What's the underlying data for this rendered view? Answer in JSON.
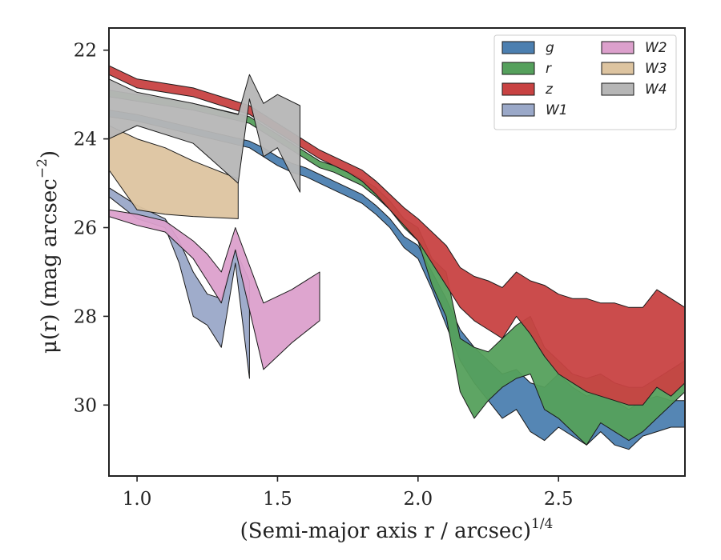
{
  "chart_data": {
    "type": "area",
    "xlabel": "(Semi-major axis r / arcsec)",
    "xlabel_exponent": "1/4",
    "ylabel": "μ(r) (mag arcsec",
    "ylabel_exponent": "−2",
    "ylabel_close": ")",
    "xlim": [
      0.9,
      2.95
    ],
    "ylim": [
      31.6,
      21.5
    ],
    "y_inverted": true,
    "xticks": [
      1.0,
      1.5,
      2.0,
      2.5
    ],
    "xtick_labels": [
      "1.0",
      "1.5",
      "2.0",
      "2.5"
    ],
    "yticks": [
      22,
      24,
      26,
      28,
      30
    ],
    "ytick_labels": [
      "22",
      "24",
      "26",
      "28",
      "30"
    ],
    "grid": false,
    "legend": {
      "placement": "top-right",
      "columns": 2
    },
    "series": [
      {
        "name": "g",
        "color": "#4c7fb0",
        "x": [
          0.9,
          1.0,
          1.1,
          1.2,
          1.3,
          1.4,
          1.45,
          1.5,
          1.55,
          1.6,
          1.65,
          1.7,
          1.75,
          1.8,
          1.85,
          1.9,
          1.95,
          2.0,
          2.05,
          2.1,
          2.15,
          2.2,
          2.25,
          2.3,
          2.35,
          2.4,
          2.45,
          2.5,
          2.55,
          2.6,
          2.65,
          2.7,
          2.75,
          2.8,
          2.85,
          2.9,
          2.95
        ],
        "lo": [
          23.35,
          23.45,
          23.6,
          23.75,
          23.9,
          24.05,
          24.2,
          24.4,
          24.55,
          24.65,
          24.8,
          24.95,
          25.1,
          25.25,
          25.5,
          25.8,
          26.2,
          26.4,
          27.0,
          27.6,
          28.3,
          28.7,
          29.0,
          29.3,
          29.2,
          29.5,
          29.6,
          29.3,
          29.6,
          29.8,
          29.7,
          29.9,
          30.1,
          29.9,
          29.8,
          29.9,
          29.9
        ],
        "hi": [
          23.5,
          23.6,
          23.75,
          23.9,
          24.05,
          24.2,
          24.4,
          24.6,
          24.75,
          24.85,
          25.0,
          25.15,
          25.3,
          25.45,
          25.7,
          26.0,
          26.45,
          26.7,
          27.4,
          28.2,
          29.0,
          29.5,
          29.9,
          30.3,
          30.1,
          30.6,
          30.8,
          30.5,
          30.7,
          30.9,
          30.6,
          30.9,
          31.0,
          30.7,
          30.6,
          30.5,
          30.5
        ]
      },
      {
        "name": "r",
        "color": "#55a05c",
        "x": [
          0.9,
          1.0,
          1.1,
          1.2,
          1.3,
          1.4,
          1.45,
          1.5,
          1.55,
          1.6,
          1.65,
          1.7,
          1.75,
          1.8,
          1.85,
          1.9,
          1.95,
          2.0,
          2.05,
          2.1,
          2.15,
          2.2,
          2.25,
          2.3,
          2.35,
          2.4,
          2.45,
          2.5,
          2.55,
          2.6,
          2.65,
          2.7,
          2.75,
          2.8,
          2.85,
          2.9,
          2.95
        ],
        "lo": [
          22.9,
          23.0,
          23.1,
          23.2,
          23.35,
          23.5,
          23.7,
          23.9,
          24.1,
          24.3,
          24.5,
          24.6,
          24.75,
          24.9,
          25.1,
          25.4,
          25.8,
          26.0,
          26.7,
          27.0,
          28.5,
          28.7,
          28.8,
          28.5,
          28.2,
          28.0,
          28.7,
          29.0,
          29.3,
          29.4,
          29.3,
          29.5,
          29.6,
          29.6,
          29.4,
          29.2,
          29.0
        ],
        "hi": [
          23.05,
          23.15,
          23.25,
          23.35,
          23.5,
          23.65,
          23.85,
          24.05,
          24.25,
          24.45,
          24.65,
          24.75,
          24.9,
          25.05,
          25.3,
          25.6,
          26.0,
          26.3,
          27.3,
          28.0,
          29.7,
          30.3,
          29.9,
          29.6,
          29.4,
          29.3,
          30.1,
          30.3,
          30.6,
          30.9,
          30.4,
          30.6,
          30.8,
          30.6,
          30.3,
          30.0,
          29.7
        ]
      },
      {
        "name": "z",
        "color": "#c84242",
        "x": [
          0.9,
          1.0,
          1.1,
          1.2,
          1.3,
          1.4,
          1.45,
          1.5,
          1.55,
          1.6,
          1.65,
          1.7,
          1.75,
          1.8,
          1.85,
          1.9,
          1.95,
          2.0,
          2.05,
          2.1,
          2.15,
          2.2,
          2.25,
          2.3,
          2.35,
          2.4,
          2.45,
          2.5,
          2.55,
          2.6,
          2.65,
          2.7,
          2.75,
          2.8,
          2.85,
          2.9,
          2.95
        ],
        "lo": [
          22.35,
          22.65,
          22.75,
          22.85,
          23.05,
          23.25,
          23.45,
          23.65,
          23.85,
          24.05,
          24.25,
          24.4,
          24.55,
          24.7,
          24.95,
          25.25,
          25.55,
          25.8,
          26.1,
          26.4,
          26.9,
          27.1,
          27.2,
          27.35,
          27.0,
          27.2,
          27.3,
          27.5,
          27.6,
          27.6,
          27.7,
          27.7,
          27.8,
          27.8,
          27.4,
          27.6,
          27.8
        ],
        "hi": [
          22.55,
          22.85,
          22.95,
          23.05,
          23.25,
          23.45,
          23.65,
          23.85,
          24.05,
          24.25,
          24.45,
          24.6,
          24.75,
          24.95,
          25.25,
          25.6,
          25.95,
          26.3,
          26.8,
          27.3,
          27.8,
          28.1,
          28.3,
          28.5,
          28.0,
          28.4,
          28.9,
          29.3,
          29.5,
          29.7,
          29.8,
          29.9,
          30.0,
          30.0,
          29.6,
          29.8,
          29.5
        ]
      },
      {
        "name": "W1",
        "color": "#9aa8c8",
        "x": [
          0.9,
          1.0,
          1.1,
          1.15,
          1.2,
          1.25,
          1.3,
          1.35,
          1.4
        ],
        "lo": [
          25.1,
          25.5,
          25.8,
          26.3,
          27.0,
          27.5,
          27.6,
          26.5,
          27.2
        ],
        "hi": [
          25.3,
          25.8,
          26.0,
          26.8,
          28.0,
          28.2,
          28.7,
          26.8,
          29.4
        ]
      },
      {
        "name": "W2",
        "color": "#dca0cc",
        "x": [
          0.9,
          1.0,
          1.1,
          1.2,
          1.25,
          1.3,
          1.35,
          1.45,
          1.55,
          1.65
        ],
        "lo": [
          25.6,
          25.7,
          25.85,
          26.3,
          26.6,
          27.0,
          26.0,
          27.7,
          27.4,
          27.0
        ],
        "hi": [
          25.75,
          25.95,
          26.1,
          26.7,
          27.2,
          27.7,
          26.5,
          29.2,
          28.6,
          28.1
        ]
      },
      {
        "name": "W3",
        "color": "#ddc4a0",
        "x": [
          0.9,
          1.0,
          1.1,
          1.2,
          1.36
        ],
        "lo": [
          23.7,
          24.0,
          24.2,
          24.5,
          24.9
        ],
        "hi": [
          24.7,
          25.6,
          25.7,
          25.75,
          25.8
        ]
      },
      {
        "name": "W4",
        "color": "#b6b6b6",
        "x": [
          0.9,
          1.0,
          1.2,
          1.36,
          1.4,
          1.45,
          1.5,
          1.58
        ],
        "lo": [
          22.65,
          22.95,
          23.2,
          23.45,
          22.55,
          23.2,
          23.0,
          23.25
        ],
        "hi": [
          24.0,
          23.7,
          24.1,
          25.0,
          23.1,
          24.4,
          24.2,
          25.2
        ]
      }
    ]
  }
}
